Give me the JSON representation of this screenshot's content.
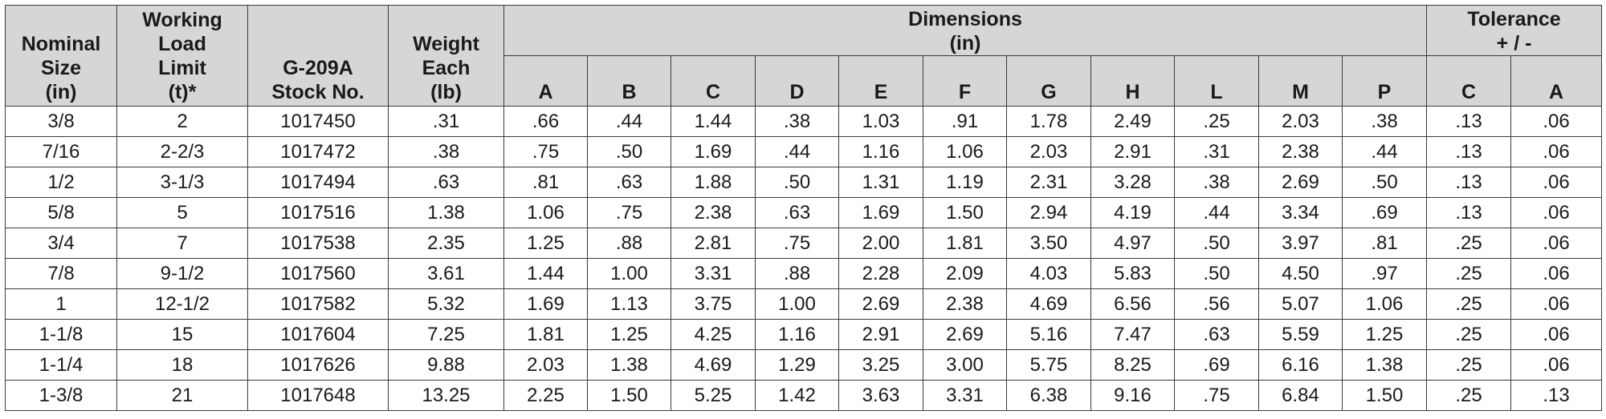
{
  "headers": {
    "nominal_size": [
      "Nominal",
      "Size",
      "(in)"
    ],
    "working_load_limit": [
      "Working",
      "Load",
      "Limit",
      "(t)*"
    ],
    "stock_no": [
      "G-209A",
      "Stock No."
    ],
    "weight_each": [
      "Weight",
      "Each",
      "(lb)"
    ],
    "dimensions": [
      "Dimensions",
      "(in)"
    ],
    "tolerance": [
      "Tolerance",
      "+ / -"
    ],
    "dim_cols": [
      "A",
      "B",
      "C",
      "D",
      "E",
      "F",
      "G",
      "H",
      "L",
      "M",
      "P"
    ],
    "tol_cols": [
      "C",
      "A"
    ]
  },
  "rows": [
    [
      "3/8",
      "2",
      "1017450",
      ".31",
      ".66",
      ".44",
      "1.44",
      ".38",
      "1.03",
      ".91",
      "1.78",
      "2.49",
      ".25",
      "2.03",
      ".38",
      ".13",
      ".06"
    ],
    [
      "7/16",
      "2-2/3",
      "1017472",
      ".38",
      ".75",
      ".50",
      "1.69",
      ".44",
      "1.16",
      "1.06",
      "2.03",
      "2.91",
      ".31",
      "2.38",
      ".44",
      ".13",
      ".06"
    ],
    [
      "1/2",
      "3-1/3",
      "1017494",
      ".63",
      ".81",
      ".63",
      "1.88",
      ".50",
      "1.31",
      "1.19",
      "2.31",
      "3.28",
      ".38",
      "2.69",
      ".50",
      ".13",
      ".06"
    ],
    [
      "5/8",
      "5",
      "1017516",
      "1.38",
      "1.06",
      ".75",
      "2.38",
      ".63",
      "1.69",
      "1.50",
      "2.94",
      "4.19",
      ".44",
      "3.34",
      ".69",
      ".13",
      ".06"
    ],
    [
      "3/4",
      "7",
      "1017538",
      "2.35",
      "1.25",
      ".88",
      "2.81",
      ".75",
      "2.00",
      "1.81",
      "3.50",
      "4.97",
      ".50",
      "3.97",
      ".81",
      ".25",
      ".06"
    ],
    [
      "7/8",
      "9-1/2",
      "1017560",
      "3.61",
      "1.44",
      "1.00",
      "3.31",
      ".88",
      "2.28",
      "2.09",
      "4.03",
      "5.83",
      ".50",
      "4.50",
      ".97",
      ".25",
      ".06"
    ],
    [
      "1",
      "12-1/2",
      "1017582",
      "5.32",
      "1.69",
      "1.13",
      "3.75",
      "1.00",
      "2.69",
      "2.38",
      "4.69",
      "6.56",
      ".56",
      "5.07",
      "1.06",
      ".25",
      ".06"
    ],
    [
      "1-1/8",
      "15",
      "1017604",
      "7.25",
      "1.81",
      "1.25",
      "4.25",
      "1.16",
      "2.91",
      "2.69",
      "5.16",
      "7.47",
      ".63",
      "5.59",
      "1.25",
      ".25",
      ".06"
    ],
    [
      "1-1/4",
      "18",
      "1017626",
      "9.88",
      "2.03",
      "1.38",
      "4.69",
      "1.29",
      "3.25",
      "3.00",
      "5.75",
      "8.25",
      ".69",
      "6.16",
      "1.38",
      ".25",
      ".06"
    ],
    [
      "1-3/8",
      "21",
      "1017648",
      "13.25",
      "2.25",
      "1.50",
      "5.25",
      "1.42",
      "3.63",
      "3.31",
      "6.38",
      "9.16",
      ".75",
      "6.84",
      "1.50",
      ".25",
      ".13"
    ]
  ]
}
